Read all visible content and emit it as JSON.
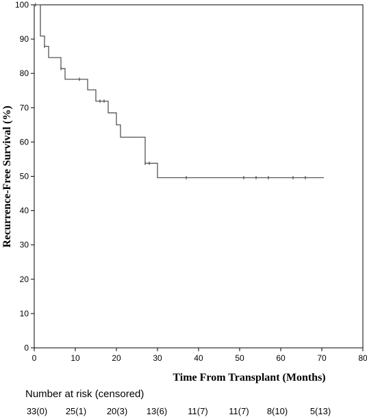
{
  "chart_data": {
    "type": "line",
    "title": "",
    "xlabel": "Time From Transplant (Months)",
    "ylabel": "Recurrence-Free Survival (%)",
    "xlim": [
      0,
      80
    ],
    "ylim": [
      0,
      100
    ],
    "x_ticks": [
      0,
      10,
      20,
      30,
      40,
      50,
      60,
      70,
      80
    ],
    "y_ticks": [
      0,
      10,
      20,
      30,
      40,
      50,
      60,
      70,
      80,
      90,
      100
    ],
    "grid": false,
    "line_color": "#555555",
    "series": [
      {
        "steps": [
          [
            0,
            100
          ],
          [
            1.5,
            90.9
          ],
          [
            2.5,
            87.9
          ],
          [
            3.5,
            84.6
          ],
          [
            6.5,
            81.4
          ],
          [
            7.5,
            78.3
          ],
          [
            13,
            75.2
          ],
          [
            15,
            71.9
          ],
          [
            18,
            68.5
          ],
          [
            20,
            65.0
          ],
          [
            21,
            61.4
          ],
          [
            27,
            53.8
          ],
          [
            30,
            49.6
          ],
          [
            70.5,
            49.6
          ]
        ],
        "censored": [
          [
            0.3,
            100
          ],
          [
            2.5,
            87.9
          ],
          [
            6.5,
            81.4
          ],
          [
            11,
            78.3
          ],
          [
            16,
            71.9
          ],
          [
            17,
            71.9
          ],
          [
            27,
            53.8
          ],
          [
            28,
            53.8
          ],
          [
            37,
            49.6
          ],
          [
            51,
            49.6
          ],
          [
            54,
            49.6
          ],
          [
            57,
            49.6
          ],
          [
            63,
            49.6
          ],
          [
            66,
            49.6
          ]
        ]
      }
    ],
    "risk_table": {
      "title": "Number at risk (censored)",
      "values": [
        "33(0)",
        "25(1)",
        "20(3)",
        "13(6)",
        "11(7)",
        "11(7)",
        "8(10)",
        "5(13)"
      ]
    }
  }
}
